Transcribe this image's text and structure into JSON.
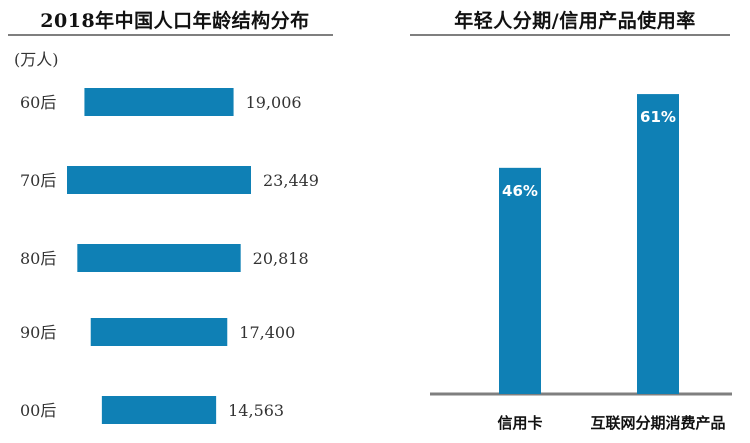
{
  "chart_data": [
    {
      "type": "bar",
      "orientation": "horizontal",
      "title": "2018年中国人口年龄结构分布",
      "unit": "(万人)",
      "categories": [
        "60后",
        "70后",
        "80后",
        "90后",
        "00后"
      ],
      "values": [
        19006,
        23449,
        20818,
        17400,
        14563
      ],
      "value_labels": [
        "19,006",
        "23,449",
        "20,818",
        "17,400",
        "14,563"
      ],
      "bar_color": "#0f80b5",
      "grid": false,
      "legend": "none"
    },
    {
      "type": "bar",
      "orientation": "vertical",
      "title": "年轻人分期/信用产品使用率",
      "categories": [
        "信用卡",
        "互联网分期消费产品"
      ],
      "values": [
        46,
        61
      ],
      "value_labels": [
        "46%",
        "61%"
      ],
      "ylim": [
        0,
        72
      ],
      "bar_color": "#0f80b5",
      "axis_color": "#7f7f7f",
      "grid": false,
      "legend": "none"
    }
  ]
}
